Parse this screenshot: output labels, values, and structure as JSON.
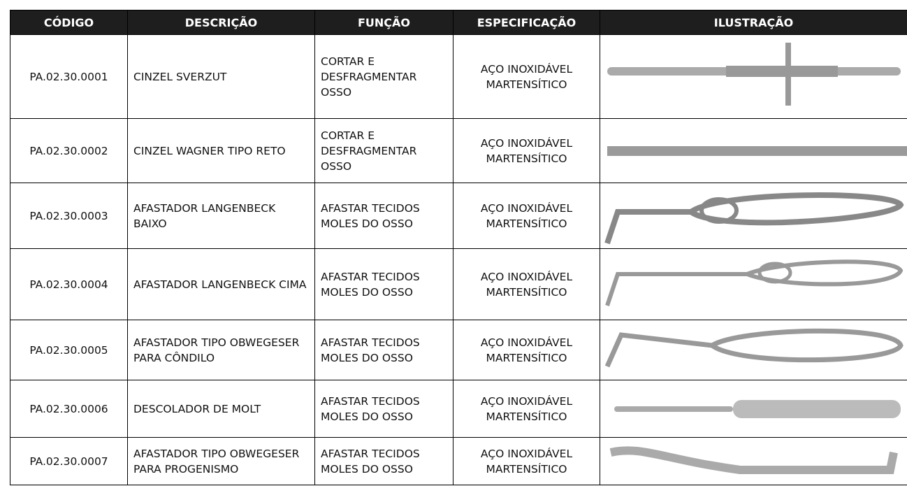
{
  "table": {
    "header": [
      "CÓDIGO",
      "DESCRIÇÃO",
      "FUNÇÃO",
      "ESPECIFICAÇÃO",
      "ILUSTRAÇÃO"
    ],
    "rows": [
      [
        "PA.02.30.0001",
        "CINZEL SVERZUT",
        "CORTAR E DESFRAGMENTAR OSSO",
        "AÇO INOXIDÁVEL MARTENSÍTICO"
      ],
      [
        "PA.02.30.0002",
        "CINZEL WAGNER TIPO RETO",
        "CORTAR E DESFRAGMENTAR OSSO",
        "AÇO INOXIDÁVEL MARTENSÍTICO"
      ],
      [
        "PA.02.30.0003",
        "AFASTADOR LANGENBECK BAIXO",
        "AFASTAR TECIDOS MOLES DO OSSO",
        "AÇO INOXIDÁVEL MARTENSÍTICO"
      ],
      [
        "PA.02.30.0004",
        "AFASTADOR LANGENBECK CIMA",
        "AFASTAR TECIDOS MOLES DO OSSO",
        "AÇO INOXIDÁVEL MARTENSÍTICO"
      ],
      [
        "PA.02.30.0005",
        "AFASTADOR TIPO OBWEGESER PARA CÔNDILO",
        "AFASTAR TECIDOS MOLES DO OSSO",
        "AÇO INOXIDÁVEL MARTENSÍTICO"
      ],
      [
        "PA.02.30.0006",
        "DESCOLADOR DE MOLT",
        "AFASTAR TECIDOS MOLES DO OSSO",
        "AÇO INOXIDÁVEL MARTENSÍTICO"
      ],
      [
        "PA.02.30.0007",
        "AFASTADOR TIPO OBWEGESER PARA PROGENISMO",
        "AFASTAR TECIDOS MOLES DO OSSO",
        "AÇO INOXIDÁVEL MARTENSÍTICO"
      ]
    ]
  }
}
